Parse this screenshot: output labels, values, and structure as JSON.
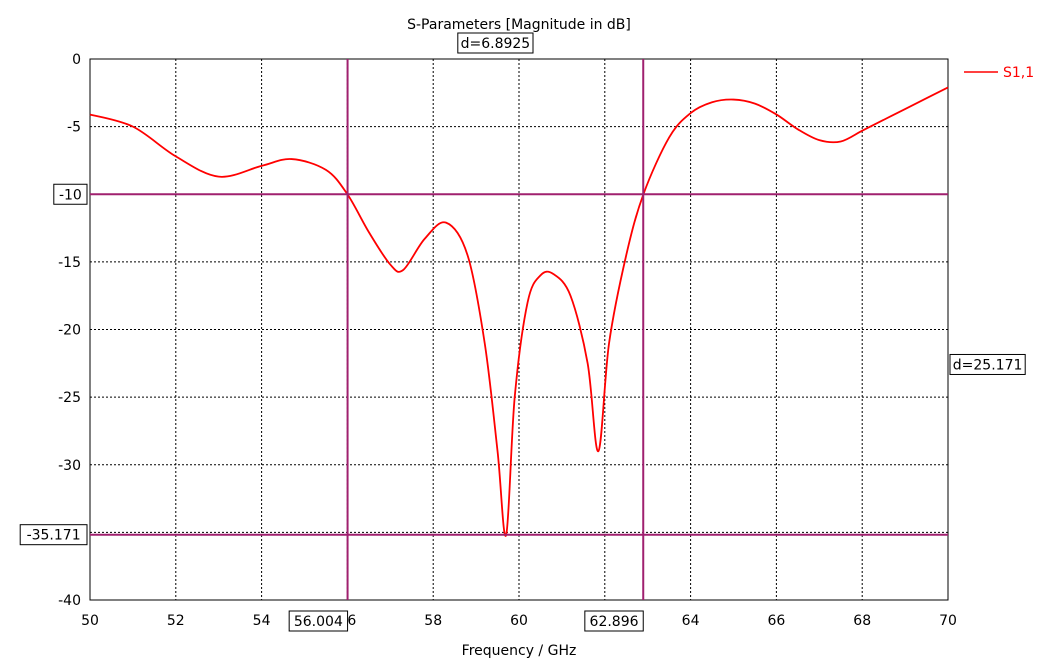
{
  "chart_data": {
    "type": "line",
    "title": "S-Parameters [Magnitude in dB]",
    "xlabel": "Frequency / GHz",
    "ylabel": "",
    "xlim": [
      50,
      70
    ],
    "ylim": [
      -40,
      0
    ],
    "x_ticks": [
      50,
      52,
      54,
      56,
      58,
      60,
      62,
      64,
      66,
      68,
      70
    ],
    "x_tick_labels": [
      "50",
      "52",
      "54",
      "56",
      "58",
      "60",
      "62",
      "64",
      "66",
      "68",
      "70"
    ],
    "y_ticks": [
      0,
      -5,
      -10,
      -15,
      -20,
      -25,
      -30,
      -35,
      -40
    ],
    "y_tick_labels": [
      "0",
      "-5",
      "-10",
      "-15",
      "-20",
      "-25",
      "-30",
      "-35",
      "-40"
    ],
    "grid": true,
    "legend": {
      "position": "top-right"
    },
    "series": [
      {
        "name": "S1,1",
        "color": "#ff0000",
        "x": [
          50,
          51,
          52,
          53,
          54,
          54.7,
          55.5,
          56,
          56.5,
          57,
          57.3,
          57.8,
          58.3,
          58.8,
          59.2,
          59.5,
          59.7,
          59.9,
          60.2,
          60.5,
          60.8,
          61.2,
          61.6,
          61.85,
          62.1,
          62.5,
          62.9,
          63.5,
          64,
          64.5,
          65,
          65.5,
          66,
          66.5,
          67,
          67.5,
          68,
          68.5,
          69,
          69.5,
          70
        ],
        "y": [
          -4.1,
          -5.0,
          -7.2,
          -8.7,
          -7.9,
          -7.4,
          -8.2,
          -10.0,
          -12.8,
          -15.2,
          -15.6,
          -13.3,
          -12.1,
          -14.5,
          -21.0,
          -29.0,
          -35.2,
          -25.0,
          -18.0,
          -16.0,
          -15.9,
          -17.5,
          -22.5,
          -29.0,
          -21.0,
          -14.5,
          -10.0,
          -5.8,
          -4.0,
          -3.2,
          -3.0,
          -3.3,
          -4.1,
          -5.2,
          -6.0,
          -6.1,
          -5.3,
          -4.5,
          -3.7,
          -2.9,
          -2.1
        ]
      }
    ],
    "markers": {
      "horizontal_lines": [
        {
          "y": -10,
          "label": "-10",
          "color": "#a0206f"
        },
        {
          "y": -35.171,
          "label": "-35.171",
          "color": "#a0206f"
        }
      ],
      "vertical_lines": [
        {
          "x": 56.004,
          "label": "56.004",
          "color": "#a0206f"
        },
        {
          "x": 62.896,
          "label": "62.896",
          "color": "#a0206f"
        }
      ],
      "delta_x_label": "d=6.8925",
      "delta_y_label": "d=25.171"
    }
  }
}
